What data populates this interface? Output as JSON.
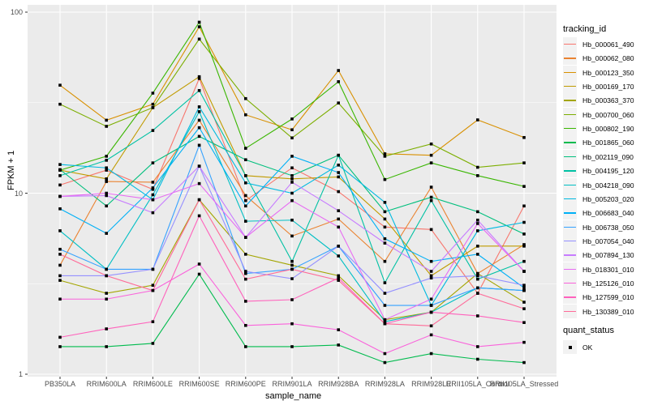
{
  "figure": {
    "y_axis": {
      "title": "FPKM + 1",
      "tick_labels": [
        "100",
        "10",
        "1"
      ],
      "tick_values": [
        100,
        10,
        1
      ]
    },
    "x_axis": {
      "title": "sample_name"
    },
    "legend": {
      "title": "tracking_id"
    },
    "quant_legend": {
      "title": "quant_status",
      "items": [
        {
          "label": "OK",
          "marker": "black-square"
        }
      ]
    },
    "colors": {
      "panel_bg": "#EBEBEB",
      "grid": "#FFFFFF",
      "axis_text": "#4D4D4D",
      "tick_mark": "#333333",
      "point": "#000000",
      "legend_key_bg": "#F2F2F2"
    }
  },
  "chart_data": {
    "type": "line",
    "x_type": "categorical",
    "y_scale": "log10",
    "ylim": [
      1,
      100
    ],
    "y_ticks": [
      1,
      10,
      100
    ],
    "y_minor_ticks": [
      3.162,
      31.62
    ],
    "xlabel": "sample_name",
    "ylabel": "FPKM + 1",
    "grid": "white major+minor gridlines on gray panel",
    "legend_position": "right",
    "point_marker": "small black square on every point (quant_status = OK)",
    "categories": [
      "PB350LA",
      "RRIM600LA",
      "RRIM600LE",
      "RRIM600SE",
      "RRIM600PE",
      "RRIM901LA",
      "RRIM928BA",
      "RRIM928LA",
      "RRIM928LE",
      "RRII105LA_Control",
      "RRII105LA_Stressed"
    ],
    "series": [
      {
        "name": "Hb_000061_490",
        "color": "#F8766D",
        "values": [
          11.1,
          13.4,
          10.5,
          43.0,
          9.1,
          13.8,
          10.2,
          6.5,
          6.3,
          2.8,
          8.5
        ]
      },
      {
        "name": "Hb_000062_080",
        "color": "#EA8331",
        "values": [
          4.0,
          11.6,
          11.5,
          25.3,
          9.7,
          5.8,
          7.2,
          4.2,
          10.8,
          3.6,
          5.2
        ]
      },
      {
        "name": "Hb_000123_350",
        "color": "#D89000",
        "values": [
          39.5,
          25.3,
          31.0,
          83.0,
          27.1,
          22.4,
          47.6,
          16.5,
          16.2,
          25.4,
          20.3
        ]
      },
      {
        "name": "Hb_000169_170",
        "color": "#C09B00",
        "values": [
          13.4,
          12.0,
          29.7,
          44.0,
          12.5,
          12.0,
          12.3,
          7.2,
          3.5,
          5.1,
          5.1
        ]
      },
      {
        "name": "Hb_000363_370",
        "color": "#A3A500",
        "values": [
          3.3,
          2.8,
          3.1,
          9.2,
          4.6,
          4.0,
          3.5,
          2.0,
          2.2,
          3.6,
          2.5
        ]
      },
      {
        "name": "Hb_000700_060",
        "color": "#7CAE00",
        "values": [
          31.0,
          23.4,
          29.7,
          71.0,
          33.3,
          20.2,
          31.5,
          16.0,
          18.7,
          13.9,
          14.7
        ]
      },
      {
        "name": "Hb_000802_190",
        "color": "#39B600",
        "values": [
          13.4,
          16.0,
          35.7,
          88.0,
          17.7,
          25.7,
          41.3,
          11.9,
          14.7,
          12.5,
          10.9
        ]
      },
      {
        "name": "Hb_001865_060",
        "color": "#00BB4E",
        "values": [
          1.42,
          1.42,
          1.48,
          3.57,
          1.42,
          1.42,
          1.45,
          1.16,
          1.3,
          1.21,
          1.16
        ]
      },
      {
        "name": "Hb_002119_090",
        "color": "#00BF7D",
        "values": [
          13.5,
          8.5,
          14.7,
          20.6,
          15.3,
          12.5,
          16.2,
          7.9,
          9.5,
          7.9,
          5.95
        ]
      },
      {
        "name": "Hb_004195_120",
        "color": "#00C1A3",
        "values": [
          12.5,
          15.2,
          22.2,
          36.9,
          12.5,
          4.2,
          16.2,
          3.2,
          9.1,
          3.35,
          4.2
        ]
      },
      {
        "name": "Hb_004218_090",
        "color": "#00BFC4",
        "values": [
          6.2,
          3.8,
          9.8,
          28.2,
          7.0,
          7.1,
          4.5,
          1.95,
          2.2,
          3.0,
          2.9
        ]
      },
      {
        "name": "Hb_005203_020",
        "color": "#00BAE0",
        "values": [
          14.4,
          13.8,
          9.2,
          30.0,
          11.4,
          10.0,
          14.3,
          8.9,
          2.4,
          6.2,
          6.9
        ]
      },
      {
        "name": "Hb_006683_040",
        "color": "#00B0F6",
        "values": [
          8.2,
          6.0,
          10.7,
          23.0,
          8.5,
          16.0,
          13.0,
          5.6,
          4.2,
          4.6,
          3.0
        ]
      },
      {
        "name": "Hb_006738_050",
        "color": "#35A2FF",
        "values": [
          4.9,
          3.8,
          3.8,
          18.4,
          3.6,
          3.8,
          5.1,
          2.4,
          2.4,
          3.0,
          2.9
        ]
      },
      {
        "name": "Hb_007054_040",
        "color": "#9590FF",
        "values": [
          3.5,
          3.5,
          3.8,
          14.1,
          3.7,
          3.37,
          5.1,
          2.8,
          3.4,
          3.5,
          3.1
        ]
      },
      {
        "name": "Hb_007894_130",
        "color": "#C77CFF",
        "values": [
          9.6,
          9.7,
          7.8,
          14.1,
          5.7,
          11.5,
          8.0,
          5.3,
          3.7,
          7.1,
          3.7
        ]
      },
      {
        "name": "Hb_018301_010",
        "color": "#E76BF3",
        "values": [
          9.6,
          10.0,
          9.2,
          11.3,
          5.7,
          9.1,
          6.5,
          2.0,
          2.6,
          6.8,
          3.7
        ]
      },
      {
        "name": "Hb_125126_010",
        "color": "#FA62DB",
        "values": [
          2.6,
          2.6,
          2.9,
          4.06,
          1.86,
          1.9,
          1.76,
          1.3,
          1.65,
          1.42,
          1.5
        ]
      },
      {
        "name": "Hb_127599_010",
        "color": "#FF62BC",
        "values": [
          1.6,
          1.78,
          1.95,
          7.5,
          2.53,
          2.58,
          3.4,
          1.9,
          2.2,
          2.1,
          1.93
        ]
      },
      {
        "name": "Hb_130389_010",
        "color": "#FF6A98",
        "values": [
          4.6,
          3.5,
          2.9,
          9.2,
          3.35,
          3.8,
          3.3,
          1.9,
          1.85,
          2.8,
          2.3
        ]
      }
    ]
  }
}
